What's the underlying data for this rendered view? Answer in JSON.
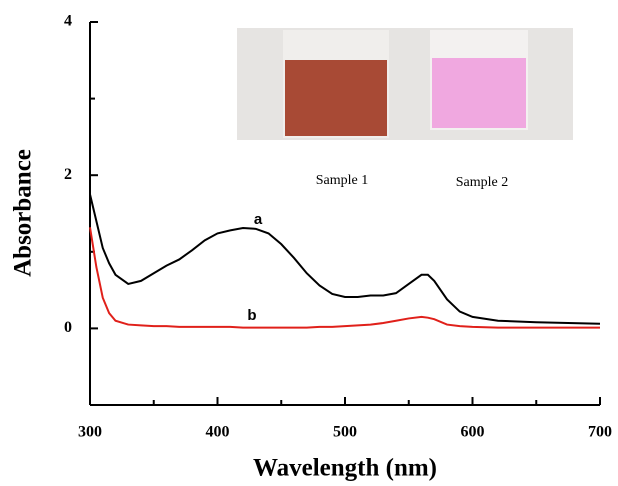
{
  "chart_data": {
    "type": "line",
    "x_label": "Wavelength (nm)",
    "y_label": "Absorbance",
    "x": [
      300,
      305,
      310,
      315,
      320,
      330,
      340,
      350,
      360,
      370,
      380,
      390,
      400,
      410,
      420,
      430,
      440,
      450,
      460,
      470,
      480,
      490,
      500,
      510,
      520,
      530,
      540,
      550,
      560,
      565,
      570,
      580,
      590,
      600,
      620,
      650,
      700
    ],
    "series": [
      {
        "name": "a",
        "color": "#000000",
        "values": [
          1.75,
          1.4,
          1.05,
          0.85,
          0.7,
          0.58,
          0.62,
          0.72,
          0.82,
          0.9,
          1.02,
          1.15,
          1.24,
          1.28,
          1.31,
          1.3,
          1.24,
          1.1,
          0.92,
          0.72,
          0.56,
          0.45,
          0.41,
          0.41,
          0.43,
          0.43,
          0.46,
          0.58,
          0.7,
          0.7,
          0.62,
          0.38,
          0.22,
          0.15,
          0.1,
          0.08,
          0.06
        ]
      },
      {
        "name": "b",
        "color": "#e0201a",
        "values": [
          1.32,
          0.8,
          0.4,
          0.2,
          0.1,
          0.05,
          0.04,
          0.03,
          0.03,
          0.02,
          0.02,
          0.02,
          0.02,
          0.02,
          0.01,
          0.01,
          0.01,
          0.01,
          0.01,
          0.01,
          0.02,
          0.02,
          0.03,
          0.04,
          0.05,
          0.07,
          0.1,
          0.13,
          0.15,
          0.14,
          0.12,
          0.05,
          0.03,
          0.02,
          0.01,
          0.01,
          0.01
        ]
      }
    ],
    "annotations": [
      "a",
      "b",
      "Sample 1",
      "Sample 2"
    ],
    "xlim": [
      300,
      700
    ],
    "xticks": [
      300,
      400,
      500,
      600,
      700
    ],
    "xminorticks": [
      350,
      450,
      550,
      650
    ],
    "ylim": [
      -1,
      4
    ],
    "yticks": [
      0,
      2,
      4
    ],
    "yminorticks": [
      1,
      3
    ]
  }
}
